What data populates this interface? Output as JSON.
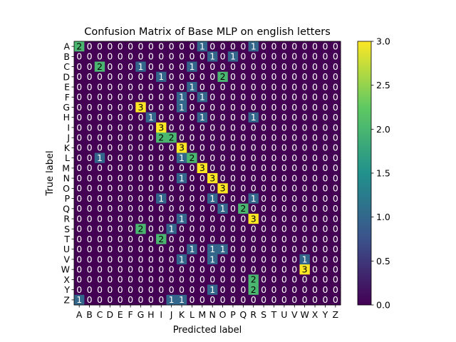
{
  "chart_data": {
    "type": "heatmap",
    "title": "Confusion Matrix of Base MLP on english letters",
    "xlabel": "Predicted label",
    "ylabel": "True label",
    "categories": [
      "A",
      "B",
      "C",
      "D",
      "E",
      "F",
      "G",
      "H",
      "I",
      "J",
      "K",
      "L",
      "M",
      "N",
      "O",
      "P",
      "Q",
      "R",
      "S",
      "T",
      "U",
      "V",
      "W",
      "X",
      "Y",
      "Z"
    ],
    "matrix": [
      [
        2,
        0,
        0,
        0,
        0,
        0,
        0,
        0,
        0,
        0,
        0,
        0,
        1,
        0,
        0,
        0,
        0,
        1,
        0,
        0,
        0,
        0,
        0,
        0,
        0,
        0
      ],
      [
        0,
        0,
        0,
        0,
        0,
        0,
        0,
        0,
        0,
        0,
        0,
        0,
        0,
        1,
        0,
        1,
        0,
        0,
        0,
        0,
        0,
        0,
        0,
        0,
        0,
        0
      ],
      [
        0,
        0,
        2,
        0,
        0,
        0,
        1,
        0,
        0,
        0,
        0,
        1,
        0,
        0,
        0,
        0,
        0,
        0,
        0,
        0,
        0,
        0,
        0,
        0,
        0,
        0
      ],
      [
        0,
        0,
        0,
        0,
        0,
        0,
        0,
        0,
        1,
        0,
        0,
        0,
        0,
        0,
        2,
        0,
        0,
        0,
        0,
        0,
        0,
        0,
        0,
        0,
        0,
        0
      ],
      [
        0,
        0,
        0,
        0,
        0,
        0,
        0,
        0,
        0,
        0,
        0,
        1,
        0,
        0,
        0,
        0,
        0,
        0,
        0,
        0,
        0,
        0,
        0,
        0,
        0,
        0
      ],
      [
        0,
        0,
        0,
        0,
        0,
        0,
        0,
        0,
        0,
        0,
        1,
        0,
        1,
        0,
        0,
        0,
        0,
        0,
        0,
        0,
        0,
        0,
        0,
        0,
        0,
        0
      ],
      [
        0,
        0,
        0,
        0,
        0,
        0,
        3,
        0,
        0,
        0,
        1,
        0,
        0,
        0,
        0,
        0,
        0,
        0,
        0,
        0,
        0,
        0,
        0,
        0,
        0,
        0
      ],
      [
        0,
        0,
        0,
        0,
        0,
        0,
        0,
        1,
        0,
        0,
        0,
        0,
        1,
        0,
        0,
        0,
        0,
        1,
        0,
        0,
        0,
        0,
        0,
        0,
        0,
        0
      ],
      [
        0,
        0,
        0,
        0,
        0,
        0,
        0,
        0,
        3,
        0,
        0,
        0,
        0,
        0,
        0,
        0,
        0,
        0,
        0,
        0,
        0,
        0,
        0,
        0,
        0,
        0
      ],
      [
        0,
        0,
        0,
        0,
        0,
        0,
        0,
        0,
        2,
        2,
        0,
        0,
        0,
        0,
        0,
        0,
        0,
        0,
        0,
        0,
        0,
        0,
        0,
        0,
        0,
        0
      ],
      [
        0,
        0,
        0,
        0,
        0,
        0,
        0,
        0,
        0,
        0,
        3,
        0,
        0,
        0,
        0,
        0,
        0,
        0,
        0,
        0,
        0,
        0,
        0,
        0,
        0,
        0
      ],
      [
        0,
        0,
        1,
        0,
        0,
        0,
        0,
        0,
        0,
        0,
        1,
        2,
        0,
        0,
        0,
        0,
        0,
        0,
        0,
        0,
        0,
        0,
        0,
        0,
        0,
        0
      ],
      [
        0,
        0,
        0,
        0,
        0,
        0,
        0,
        0,
        0,
        0,
        0,
        0,
        3,
        0,
        0,
        0,
        0,
        0,
        0,
        0,
        0,
        0,
        0,
        0,
        0,
        0
      ],
      [
        0,
        0,
        0,
        0,
        0,
        0,
        0,
        0,
        0,
        0,
        1,
        0,
        0,
        3,
        0,
        0,
        0,
        0,
        0,
        0,
        0,
        0,
        0,
        0,
        0,
        0
      ],
      [
        0,
        0,
        0,
        0,
        0,
        0,
        0,
        0,
        0,
        0,
        0,
        0,
        0,
        0,
        3,
        0,
        0,
        0,
        0,
        0,
        0,
        0,
        0,
        0,
        0,
        0
      ],
      [
        0,
        0,
        0,
        0,
        0,
        0,
        0,
        0,
        1,
        0,
        0,
        0,
        0,
        1,
        0,
        0,
        0,
        1,
        0,
        0,
        0,
        0,
        0,
        0,
        0,
        0
      ],
      [
        0,
        0,
        0,
        0,
        0,
        0,
        0,
        0,
        0,
        0,
        0,
        0,
        0,
        0,
        1,
        0,
        2,
        0,
        0,
        0,
        0,
        0,
        0,
        0,
        0,
        0
      ],
      [
        0,
        0,
        0,
        0,
        0,
        0,
        0,
        0,
        0,
        0,
        1,
        0,
        0,
        0,
        0,
        0,
        0,
        3,
        0,
        0,
        0,
        0,
        0,
        0,
        0,
        0
      ],
      [
        0,
        0,
        0,
        0,
        0,
        0,
        2,
        0,
        0,
        1,
        0,
        0,
        0,
        0,
        0,
        0,
        0,
        0,
        0,
        0,
        0,
        0,
        0,
        0,
        0,
        0
      ],
      [
        0,
        0,
        0,
        0,
        0,
        0,
        0,
        0,
        2,
        0,
        0,
        0,
        0,
        0,
        0,
        0,
        0,
        0,
        0,
        0,
        0,
        0,
        0,
        0,
        0,
        0
      ],
      [
        0,
        0,
        0,
        0,
        0,
        0,
        0,
        0,
        0,
        0,
        0,
        1,
        0,
        1,
        1,
        0,
        0,
        0,
        0,
        0,
        0,
        0,
        0,
        0,
        0,
        0
      ],
      [
        0,
        0,
        0,
        0,
        0,
        0,
        0,
        0,
        0,
        0,
        1,
        0,
        0,
        1,
        0,
        0,
        0,
        0,
        0,
        0,
        0,
        0,
        1,
        0,
        0,
        0
      ],
      [
        0,
        0,
        0,
        0,
        0,
        0,
        0,
        0,
        0,
        0,
        0,
        0,
        0,
        0,
        0,
        0,
        0,
        0,
        0,
        0,
        0,
        0,
        3,
        0,
        0,
        0
      ],
      [
        0,
        0,
        0,
        0,
        0,
        0,
        0,
        0,
        0,
        0,
        0,
        0,
        0,
        0,
        0,
        0,
        0,
        2,
        0,
        0,
        0,
        0,
        0,
        0,
        0,
        0
      ],
      [
        0,
        0,
        0,
        0,
        0,
        0,
        0,
        0,
        0,
        0,
        0,
        0,
        0,
        1,
        0,
        0,
        0,
        2,
        0,
        0,
        0,
        0,
        0,
        0,
        0,
        0
      ],
      [
        1,
        0,
        0,
        0,
        0,
        0,
        0,
        0,
        0,
        1,
        1,
        0,
        0,
        0,
        0,
        0,
        0,
        0,
        0,
        0,
        0,
        0,
        0,
        0,
        0,
        0
      ]
    ],
    "vmin": 0,
    "vmax": 3,
    "colormap": "viridis",
    "colorbar_ticks": [
      "0.0",
      "0.5",
      "1.0",
      "1.5",
      "2.0",
      "2.5",
      "3.0"
    ],
    "colorbar_tick_values": [
      0,
      0.5,
      1.0,
      1.5,
      2.0,
      2.5,
      3.0
    ],
    "grid": false
  }
}
